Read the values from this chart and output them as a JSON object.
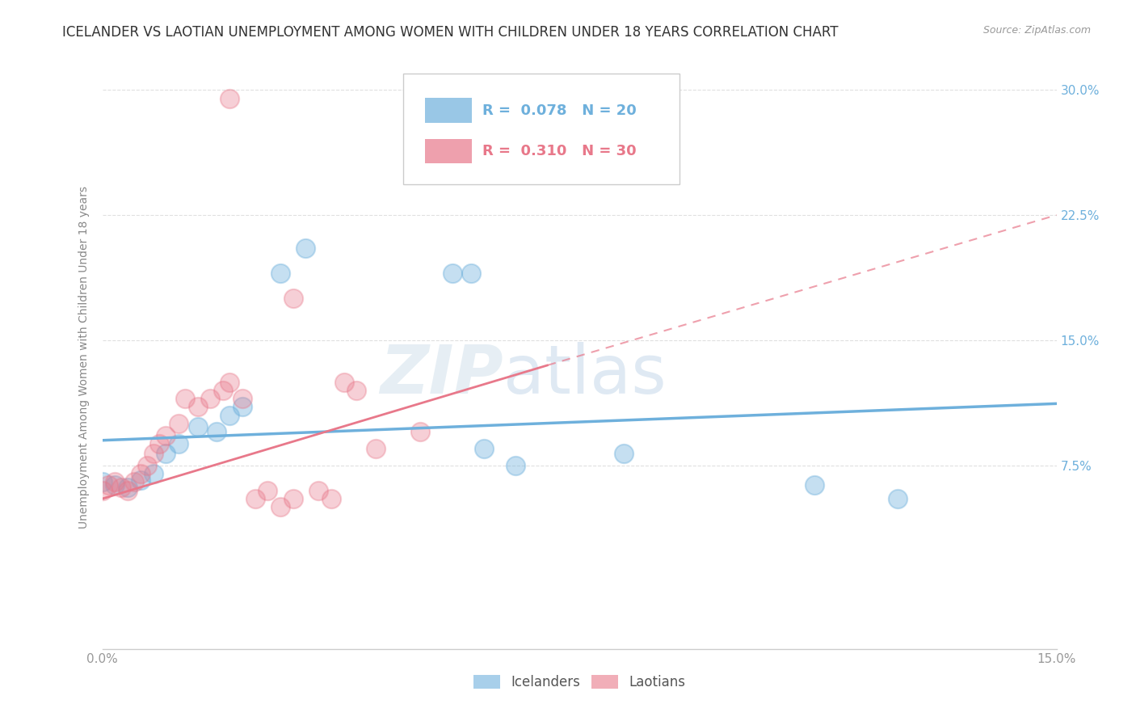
{
  "title": "ICELANDER VS LAOTIAN UNEMPLOYMENT AMONG WOMEN WITH CHILDREN UNDER 18 YEARS CORRELATION CHART",
  "source": "Source: ZipAtlas.com",
  "ylabel": "Unemployment Among Women with Children Under 18 years",
  "legend_labels": [
    "Icelanders",
    "Laotians"
  ],
  "legend_r_n": [
    {
      "r": "0.078",
      "n": "20",
      "color": "#6eb0dc"
    },
    {
      "r": "0.310",
      "n": "30",
      "color": "#e8788a"
    }
  ],
  "xlim": [
    0.0,
    0.15
  ],
  "ylim": [
    -0.035,
    0.315
  ],
  "xticks": [
    0.0,
    0.025,
    0.05,
    0.075,
    0.1,
    0.125,
    0.15
  ],
  "xticklabels": [
    "0.0%",
    "",
    "",
    "",
    "",
    "",
    "15.0%"
  ],
  "yticks": [
    0.075,
    0.15,
    0.225,
    0.3
  ],
  "yticklabels": [
    "7.5%",
    "15.0%",
    "22.5%",
    "30.0%"
  ],
  "icelander_color": "#6eb0dc",
  "laotian_color": "#e8788a",
  "icelander_scatter": [
    [
      0.0,
      0.065
    ],
    [
      0.002,
      0.063
    ],
    [
      0.004,
      0.062
    ],
    [
      0.006,
      0.066
    ],
    [
      0.008,
      0.07
    ],
    [
      0.01,
      0.082
    ],
    [
      0.012,
      0.088
    ],
    [
      0.015,
      0.098
    ],
    [
      0.018,
      0.095
    ],
    [
      0.02,
      0.105
    ],
    [
      0.022,
      0.11
    ],
    [
      0.028,
      0.19
    ],
    [
      0.032,
      0.205
    ],
    [
      0.055,
      0.19
    ],
    [
      0.058,
      0.19
    ],
    [
      0.06,
      0.085
    ],
    [
      0.065,
      0.075
    ],
    [
      0.082,
      0.082
    ],
    [
      0.112,
      0.063
    ],
    [
      0.125,
      0.055
    ]
  ],
  "laotian_scatter": [
    [
      0.0,
      0.06
    ],
    [
      0.001,
      0.063
    ],
    [
      0.002,
      0.065
    ],
    [
      0.003,
      0.062
    ],
    [
      0.004,
      0.06
    ],
    [
      0.005,
      0.065
    ],
    [
      0.006,
      0.07
    ],
    [
      0.007,
      0.075
    ],
    [
      0.008,
      0.082
    ],
    [
      0.009,
      0.088
    ],
    [
      0.01,
      0.093
    ],
    [
      0.012,
      0.1
    ],
    [
      0.013,
      0.115
    ],
    [
      0.015,
      0.11
    ],
    [
      0.017,
      0.115
    ],
    [
      0.019,
      0.12
    ],
    [
      0.02,
      0.125
    ],
    [
      0.022,
      0.115
    ],
    [
      0.024,
      0.055
    ],
    [
      0.026,
      0.06
    ],
    [
      0.028,
      0.05
    ],
    [
      0.03,
      0.055
    ],
    [
      0.034,
      0.06
    ],
    [
      0.036,
      0.055
    ],
    [
      0.038,
      0.125
    ],
    [
      0.04,
      0.12
    ],
    [
      0.043,
      0.085
    ],
    [
      0.05,
      0.095
    ],
    [
      0.02,
      0.295
    ],
    [
      0.03,
      0.175
    ]
  ],
  "icelander_line": {
    "x": [
      0.0,
      0.15
    ],
    "y": [
      0.09,
      0.112
    ]
  },
  "laotian_line_solid": {
    "x": [
      0.0,
      0.07
    ],
    "y": [
      0.055,
      0.135
    ]
  },
  "laotian_line_dashed": {
    "x": [
      0.07,
      0.15
    ],
    "y": [
      0.135,
      0.225
    ]
  },
  "background_color": "#ffffff",
  "grid_color": "#e0e0e0",
  "title_fontsize": 12,
  "label_fontsize": 10,
  "tick_fontsize": 11
}
